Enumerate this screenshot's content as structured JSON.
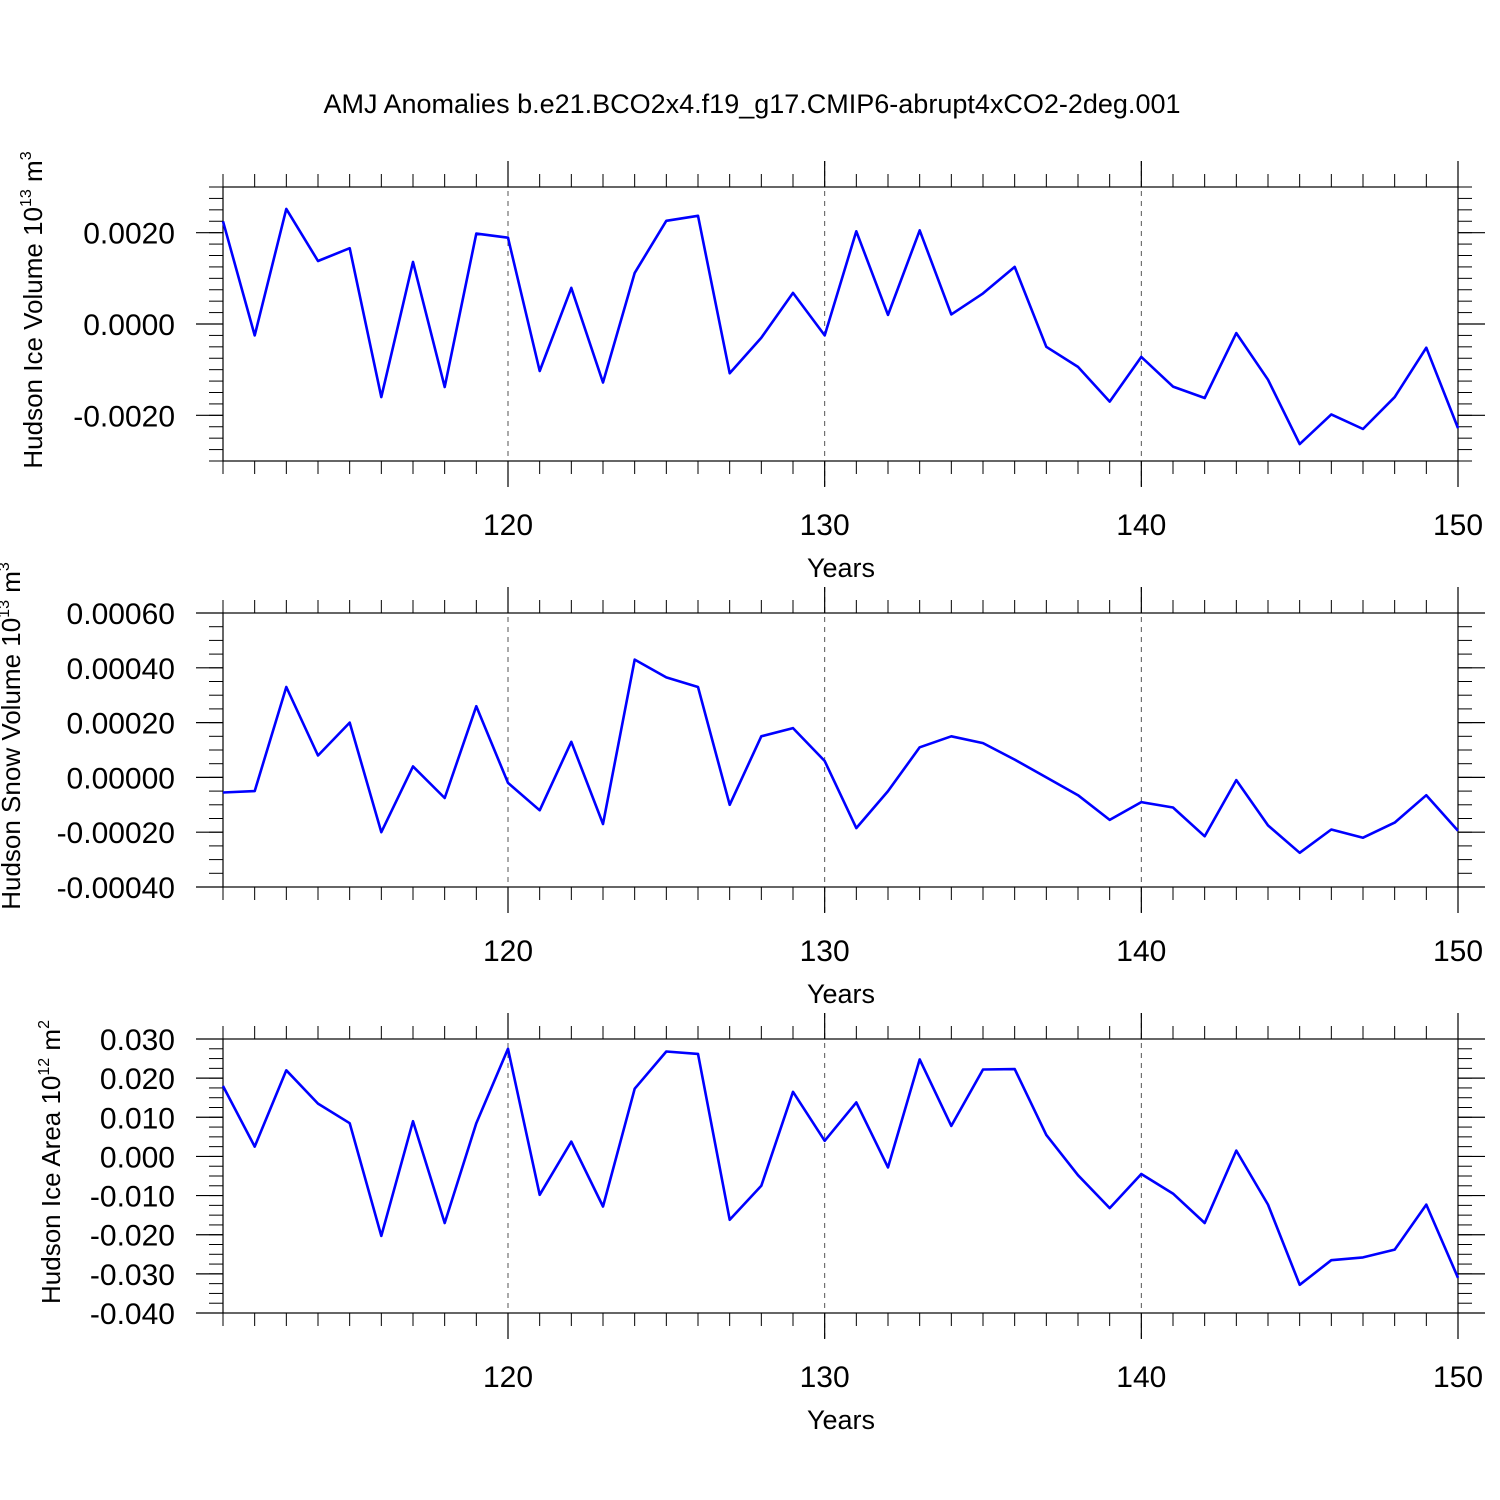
{
  "figure": {
    "title": "AMJ Anomalies b.e21.BCO2x4.f19_g17.CMIP6-abrupt4xCO2-2deg.001"
  },
  "chart_data": [
    {
      "type": "line",
      "ylabel": "Hudson Ice Volume 10",
      "ylabel_exp": "13",
      "ylabel_unit": " m",
      "ylabel_unit_exp": "3",
      "xlabel": "Years",
      "xlim": [
        111,
        150
      ],
      "ylim": [
        -0.003,
        0.003
      ],
      "yticks": [
        -0.002,
        0.0,
        0.002
      ],
      "ytick_labels": [
        "-0.0020",
        "0.0000",
        "0.0020"
      ],
      "xticks": [
        120,
        130,
        140,
        150
      ],
      "xtick_labels": [
        "120",
        "130",
        "140",
        "150"
      ],
      "x_gridlines": [
        120,
        130,
        140
      ],
      "grid": "vertical dashed",
      "color": "#0000ff",
      "x": [
        111,
        112,
        113,
        114,
        115,
        116,
        117,
        118,
        119,
        120,
        121,
        122,
        123,
        124,
        125,
        126,
        127,
        128,
        129,
        130,
        131,
        132,
        133,
        134,
        135,
        136,
        137,
        138,
        139,
        140,
        141,
        142,
        143,
        144,
        145,
        146,
        147,
        148,
        149,
        150
      ],
      "values": [
        0.00225,
        -0.00025,
        0.00252,
        0.00138,
        0.00166,
        -0.0016,
        0.00136,
        -0.00138,
        0.00198,
        0.00189,
        -0.00103,
        0.00079,
        -0.00128,
        0.00112,
        0.00226,
        0.00237,
        -0.00108,
        -0.0003,
        0.00068,
        -0.00025,
        0.00203,
        0.0002,
        0.00205,
        0.00021,
        0.00067,
        0.00125,
        -0.0005,
        -0.00094,
        -0.0017,
        -0.00072,
        -0.00137,
        -0.00162,
        -0.0002,
        -0.00122,
        -0.00263,
        -0.00198,
        -0.0023,
        -0.0016,
        -0.00052,
        -0.00228
      ]
    },
    {
      "type": "line",
      "ylabel": "Hudson Snow Volume 10",
      "ylabel_exp": "13",
      "ylabel_unit": " m",
      "ylabel_unit_exp": "3",
      "xlabel": "Years",
      "xlim": [
        111,
        150
      ],
      "ylim": [
        -0.0004,
        0.0006
      ],
      "yticks": [
        -0.0004,
        -0.0002,
        0.0,
        0.0002,
        0.0004,
        0.0006
      ],
      "ytick_labels": [
        "-0.00040",
        "-0.00020",
        "0.00000",
        "0.00020",
        "0.00040",
        "0.00060"
      ],
      "xticks": [
        120,
        130,
        140,
        150
      ],
      "xtick_labels": [
        "120",
        "130",
        "140",
        "150"
      ],
      "x_gridlines": [
        120,
        130,
        140
      ],
      "grid": "vertical dashed",
      "color": "#0000ff",
      "x": [
        111,
        112,
        113,
        114,
        115,
        116,
        117,
        118,
        119,
        120,
        121,
        122,
        123,
        124,
        125,
        126,
        127,
        128,
        129,
        130,
        131,
        132,
        133,
        134,
        135,
        136,
        137,
        138,
        139,
        140,
        141,
        142,
        143,
        144,
        145,
        146,
        147,
        148,
        149,
        150
      ],
      "values": [
        -5.5e-05,
        -5e-05,
        0.00033,
        8e-05,
        0.0002,
        -0.0002,
        4e-05,
        -7.5e-05,
        0.00026,
        -2e-05,
        -0.00012,
        0.00013,
        -0.00017,
        0.00043,
        0.000365,
        0.00033,
        -0.0001,
        0.00015,
        0.00018,
        6e-05,
        -0.000185,
        -5e-05,
        0.00011,
        0.00015,
        0.000125,
        6.5e-05,
        0.0,
        -6.5e-05,
        -0.000155,
        -9e-05,
        -0.00011,
        -0.000215,
        -1e-05,
        -0.000175,
        -0.000275,
        -0.00019,
        -0.00022,
        -0.000165,
        -6.5e-05,
        -0.000195
      ]
    },
    {
      "type": "line",
      "ylabel": "Hudson Ice Area 10",
      "ylabel_exp": "12",
      "ylabel_unit": " m",
      "ylabel_unit_exp": "2",
      "xlabel": "Years",
      "xlim": [
        111,
        150
      ],
      "ylim": [
        -0.04,
        0.03
      ],
      "yticks": [
        -0.04,
        -0.03,
        -0.02,
        -0.01,
        0.0,
        0.01,
        0.02,
        0.03
      ],
      "ytick_labels": [
        "-0.040",
        "-0.030",
        "-0.020",
        "-0.010",
        "0.000",
        "0.010",
        "0.020",
        "0.030"
      ],
      "xticks": [
        120,
        130,
        140,
        150
      ],
      "xtick_labels": [
        "120",
        "130",
        "140",
        "150"
      ],
      "x_gridlines": [
        120,
        130,
        140
      ],
      "grid": "vertical dashed",
      "color": "#0000ff",
      "x": [
        111,
        112,
        113,
        114,
        115,
        116,
        117,
        118,
        119,
        120,
        121,
        122,
        123,
        124,
        125,
        126,
        127,
        128,
        129,
        130,
        131,
        132,
        133,
        134,
        135,
        136,
        137,
        138,
        139,
        140,
        141,
        142,
        143,
        144,
        145,
        146,
        147,
        148,
        149,
        150
      ],
      "values": [
        0.018,
        0.0025,
        0.022,
        0.0135,
        0.0085,
        -0.0203,
        0.009,
        -0.017,
        0.0085,
        0.0275,
        -0.0098,
        0.0038,
        -0.0128,
        0.0173,
        0.0268,
        0.0262,
        -0.0162,
        -0.0075,
        0.0165,
        0.004,
        0.0138,
        -0.0028,
        0.0248,
        0.0078,
        0.0222,
        0.0223,
        0.0055,
        -0.0048,
        -0.0132,
        -0.0045,
        -0.0095,
        -0.017,
        0.0015,
        -0.0123,
        -0.0328,
        -0.0265,
        -0.0258,
        -0.0238,
        -0.0123,
        -0.031
      ]
    }
  ]
}
